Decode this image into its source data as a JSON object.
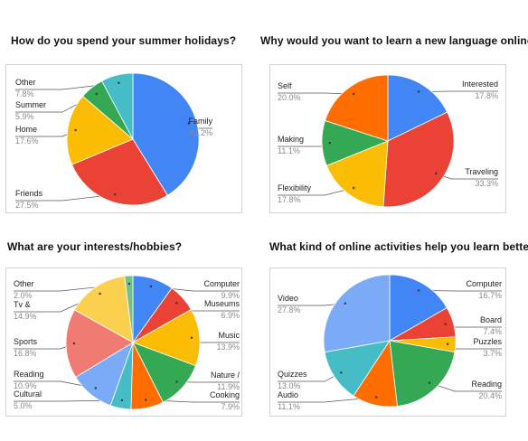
{
  "chart_data": [
    {
      "type": "pie",
      "title": "How do you spend your summer holidays?",
      "slices": [
        {
          "name": "Family",
          "value": 41.2,
          "label": "41.2%",
          "color": "#4285F4"
        },
        {
          "name": "Friends",
          "value": 27.5,
          "label": "27.5%",
          "color": "#EA4335"
        },
        {
          "name": "Home",
          "value": 17.6,
          "label": "17.6%",
          "color": "#FBBC04"
        },
        {
          "name": "Summer",
          "value": 5.9,
          "label": "5.9%",
          "color": "#34A853"
        },
        {
          "name": "Other",
          "value": 7.8,
          "label": "7.8%",
          "color": "#46BDC6"
        }
      ]
    },
    {
      "type": "pie",
      "title": "Why would you want to learn a new language online?",
      "slices": [
        {
          "name": "Interested",
          "value": 17.8,
          "label": "17.8%",
          "color": "#4285F4"
        },
        {
          "name": "Traveling",
          "value": 33.3,
          "label": "33.3%",
          "color": "#EA4335"
        },
        {
          "name": "Flexibility",
          "value": 17.8,
          "label": "17.8%",
          "color": "#FBBC04"
        },
        {
          "name": "Making",
          "value": 11.1,
          "label": "11.1%",
          "color": "#34A853"
        },
        {
          "name": "Self",
          "value": 20.0,
          "label": "20.0%",
          "color": "#FF6D01"
        }
      ]
    },
    {
      "type": "pie",
      "title": "What are your interests/hobbies?",
      "slices": [
        {
          "name": "Computer",
          "value": 9.9,
          "label": "9.9%",
          "color": "#4285F4"
        },
        {
          "name": "Museums",
          "value": 6.9,
          "label": "6.9%",
          "color": "#EA4335"
        },
        {
          "name": "Music",
          "value": 13.9,
          "label": "13.9%",
          "color": "#FBBC04"
        },
        {
          "name": "Nature /",
          "value": 11.9,
          "label": "11.9%",
          "color": "#34A853"
        },
        {
          "name": "Cooking",
          "value": 7.9,
          "label": "7.9%",
          "color": "#FF6D01"
        },
        {
          "name": "Cultural",
          "value": 5.0,
          "label": "5.0%",
          "color": "#46BDC6"
        },
        {
          "name": "Reading",
          "value": 10.9,
          "label": "10.9%",
          "color": "#7BAAF7"
        },
        {
          "name": "Sports",
          "value": 16.8,
          "label": "16.8%",
          "color": "#F07B72"
        },
        {
          "name": "Tv &",
          "value": 14.9,
          "label": "14.9%",
          "color": "#FCD04F"
        },
        {
          "name": "Other",
          "value": 2.0,
          "label": "2.0%",
          "color": "#71C287"
        }
      ]
    },
    {
      "type": "pie",
      "title": "What kind of online activities help you learn better?",
      "slices": [
        {
          "name": "Computer",
          "value": 16.7,
          "label": "16.7%",
          "color": "#4285F4"
        },
        {
          "name": "Board",
          "value": 7.4,
          "label": "7.4%",
          "color": "#EA4335"
        },
        {
          "name": "Puzzles",
          "value": 3.7,
          "label": "3.7%",
          "color": "#FBBC04"
        },
        {
          "name": "Reading",
          "value": 20.4,
          "label": "20.4%",
          "color": "#34A853"
        },
        {
          "name": "Audio",
          "value": 11.1,
          "label": "11.1%",
          "color": "#FF6D01"
        },
        {
          "name": "Quizzes",
          "value": 13.0,
          "label": "13.0%",
          "color": "#46BDC6"
        },
        {
          "name": "Video",
          "value": 27.8,
          "label": "27.8%",
          "color": "#7BAAF7"
        }
      ]
    }
  ]
}
